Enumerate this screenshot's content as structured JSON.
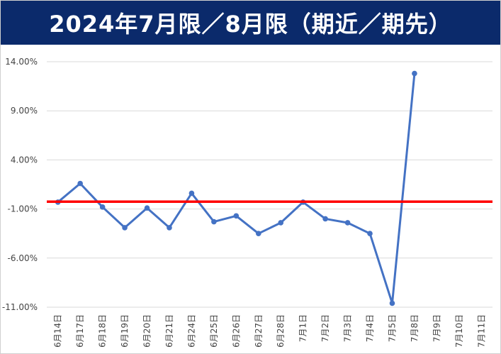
{
  "chart_data": {
    "type": "line",
    "title": "2024年7月限／8月限（期近／期先）",
    "xlabel": "",
    "ylabel": "",
    "ylim": [
      -11,
      14
    ],
    "y_ticks": [
      14,
      9,
      4,
      -1,
      -6,
      -11
    ],
    "y_tick_labels": [
      "14.00%",
      "9.00%",
      "4.00%",
      "-1.00%",
      "-6.00%",
      "-11.00%"
    ],
    "categories": [
      "6月14日",
      "6月17日",
      "6月18日",
      "6月19日",
      "6月20日",
      "6月21日",
      "6月24日",
      "6月25日",
      "6月26日",
      "6月27日",
      "6月28日",
      "7月1日",
      "7月2日",
      "7月3日",
      "7月4日",
      "7月5日",
      "7月8日",
      "7月9日",
      "7月10日",
      "7月11日"
    ],
    "series": [
      {
        "values": [
          -0.3,
          1.6,
          -0.8,
          -2.9,
          -0.9,
          -2.9,
          0.6,
          -2.3,
          -1.7,
          -3.5,
          -2.4,
          -0.3,
          -2.0,
          -2.4,
          -3.5,
          -10.6,
          12.8,
          null,
          null,
          null
        ],
        "color": "#4472c4"
      }
    ],
    "reference_line": {
      "value": -0.25,
      "color": "#ff0000"
    },
    "grid": true,
    "legend": "none"
  }
}
